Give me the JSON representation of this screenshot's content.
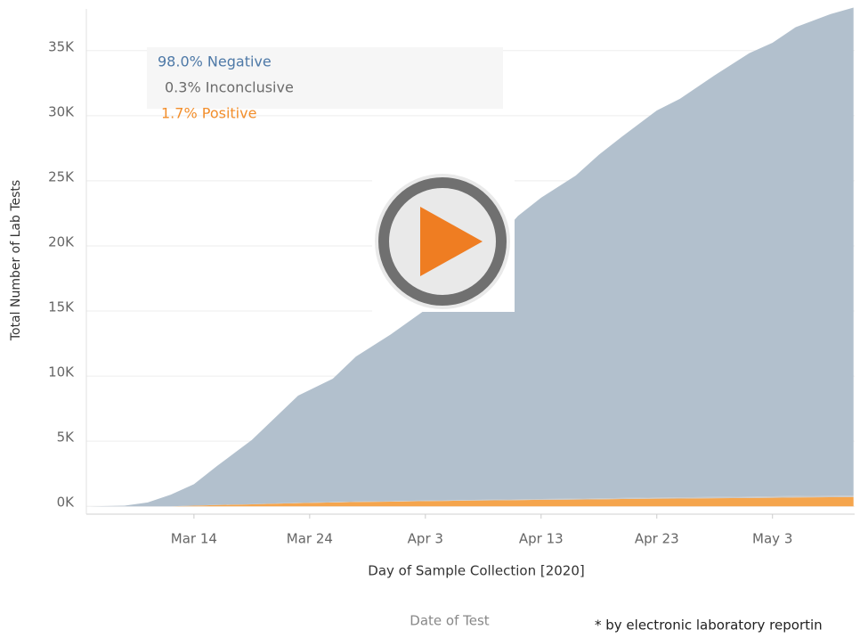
{
  "chart_data": {
    "type": "area",
    "stacked": true,
    "y_label": "Total Number of Lab Tests",
    "x_label": "Day of Sample Collection [2020]",
    "annotations": [
      "Date of Test",
      "* by electronic laboratory reportin"
    ],
    "x": [
      65,
      68,
      70,
      72,
      74,
      76,
      79,
      81,
      83,
      86,
      88,
      91,
      94,
      96,
      99,
      102,
      104,
      107,
      109,
      111,
      114,
      116,
      119,
      122,
      124,
      126,
      129,
      131
    ],
    "series": [
      {
        "name": "1.7% Positive",
        "color": "#f5a54d",
        "values": [
          0,
          0,
          0,
          0,
          50,
          100,
          150,
          200,
          250,
          300,
          330,
          360,
          400,
          420,
          450,
          480,
          500,
          520,
          540,
          560,
          590,
          600,
          620,
          640,
          660,
          680,
          700,
          710
        ]
      },
      {
        "name": "0.3% Inconclusive",
        "color": "#c9c9c9",
        "values": [
          0,
          0,
          0,
          0,
          5,
          10,
          15,
          20,
          25,
          30,
          35,
          40,
          45,
          50,
          55,
          60,
          65,
          70,
          75,
          80,
          85,
          90,
          95,
          100,
          105,
          110,
          112,
          115
        ]
      },
      {
        "name": "98.0% Negative",
        "color": "#b2c0cd",
        "values": [
          0,
          50,
          300,
          900,
          1645,
          2990,
          4935,
          6580,
          8225,
          9470,
          11135,
          12800,
          14655,
          16830,
          18795,
          21760,
          23135,
          24810,
          26385,
          27760,
          29725,
          30610,
          32385,
          34060,
          34835,
          36010,
          36988,
          37475
        ]
      }
    ],
    "legend_colors": [
      "#4e79a7",
      "#6b6b6b",
      "#f28e2b"
    ],
    "xlim": [
      64.7,
      131.1
    ],
    "xticks": [
      {
        "value": 74,
        "label": "Mar 14"
      },
      {
        "value": 84,
        "label": "Mar 24"
      },
      {
        "value": 94,
        "label": "Apr 3"
      },
      {
        "value": 104,
        "label": "Apr 13"
      },
      {
        "value": 114,
        "label": "Apr 23"
      },
      {
        "value": 124,
        "label": "May 3"
      }
    ],
    "ylim": [
      -600,
      38200
    ],
    "yticks": [
      {
        "value": 0,
        "label": "0K"
      },
      {
        "value": 5000,
        "label": "5K"
      },
      {
        "value": 10000,
        "label": "10K"
      },
      {
        "value": 15000,
        "label": "15K"
      },
      {
        "value": 20000,
        "label": "20K"
      },
      {
        "value": 25000,
        "label": "25K"
      },
      {
        "value": 30000,
        "label": "30K"
      },
      {
        "value": 35000,
        "label": "35K"
      }
    ],
    "grid": true
  }
}
